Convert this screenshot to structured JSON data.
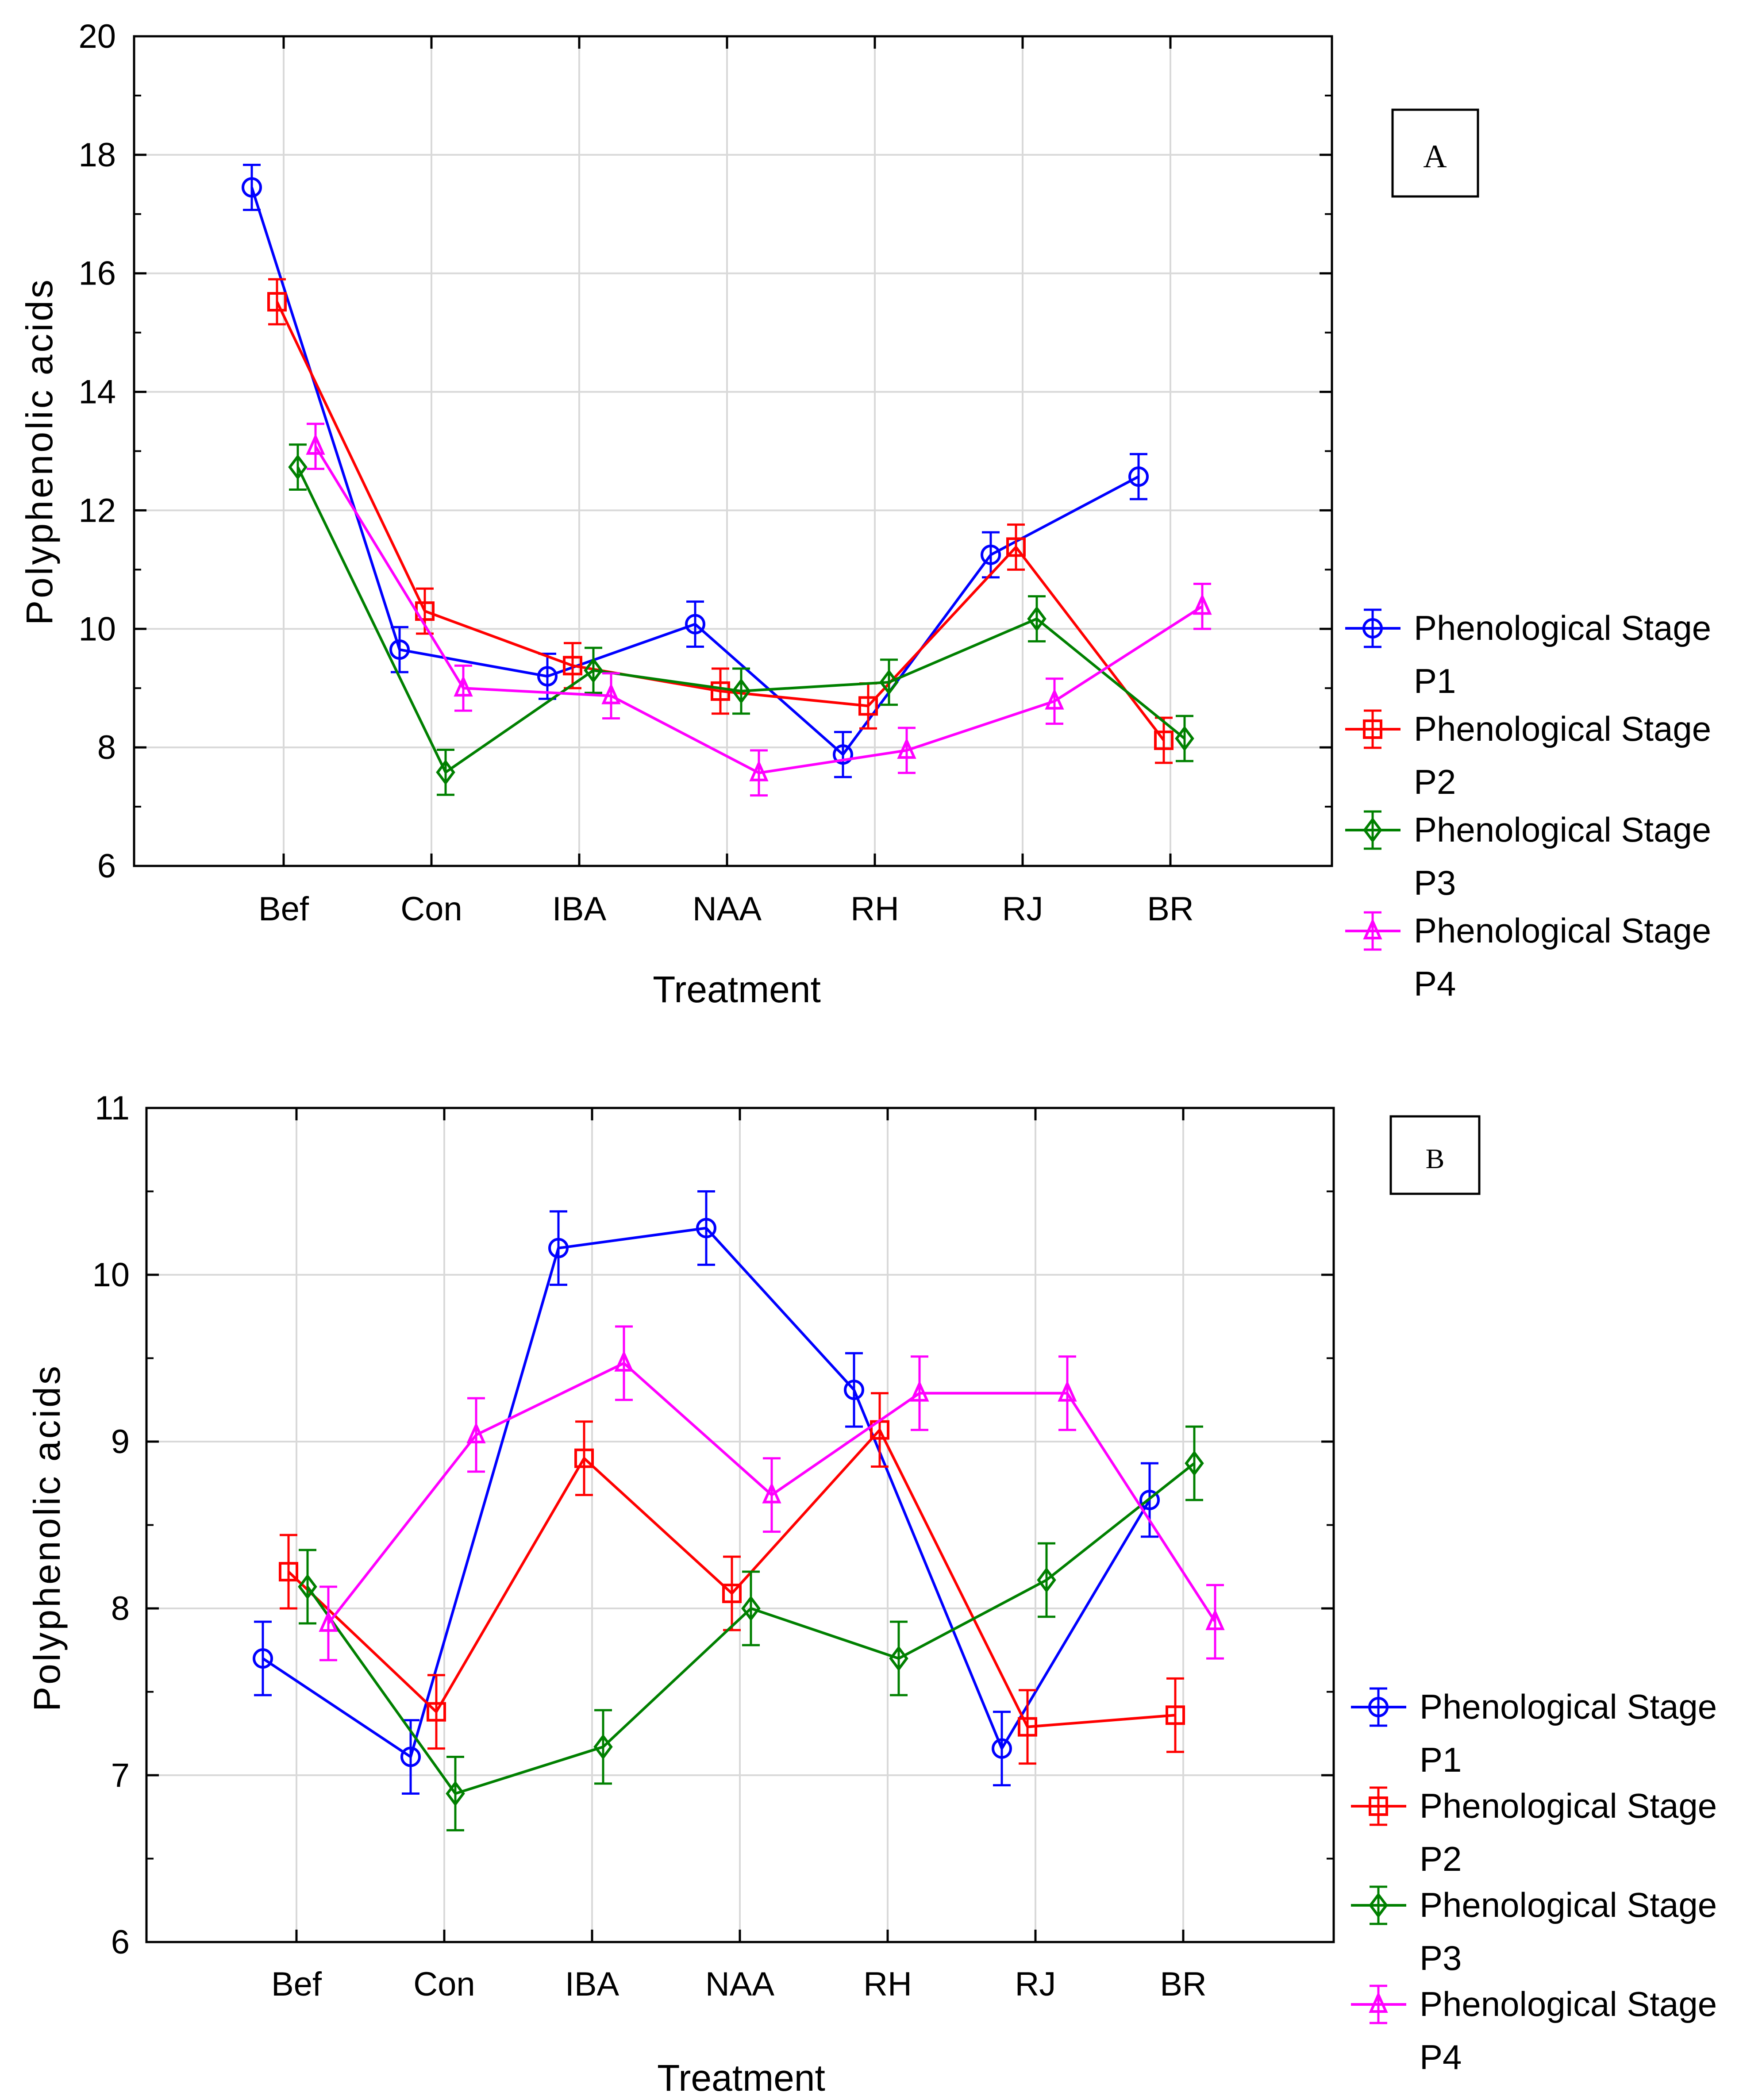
{
  "chart_data": [
    {
      "type": "line",
      "panel_label": "A",
      "xlabel": "Treatment",
      "ylabel": "Polyphenolic acids",
      "categories": [
        "Bef",
        "Con",
        "IBA",
        "NAA",
        "RH",
        "RJ",
        "BR"
      ],
      "ylim": [
        6,
        20
      ],
      "yticks": [
        6,
        8,
        10,
        12,
        14,
        16,
        18,
        20
      ],
      "grid": true,
      "legend_position": "right",
      "series": [
        {
          "name": "Phenological Stage P1",
          "line1": "Phenological Stage",
          "line2": "P1",
          "color": "#0000ff",
          "marker": "circle",
          "values": [
            17.45,
            9.65,
            9.2,
            10.08,
            7.88,
            11.25,
            12.57
          ],
          "errors": [
            0.38,
            0.38,
            0.38,
            0.38,
            0.38,
            0.38,
            0.38
          ]
        },
        {
          "name": "Phenological Stage P2",
          "line1": "Phenological Stage",
          "line2": "P2",
          "color": "#ff0000",
          "marker": "square",
          "values": [
            15.52,
            10.3,
            9.38,
            8.95,
            8.7,
            11.38,
            8.12
          ],
          "errors": [
            0.38,
            0.38,
            0.38,
            0.38,
            0.38,
            0.38,
            0.38
          ]
        },
        {
          "name": "Phenological Stage P3",
          "line1": "Phenological Stage",
          "line2": "P3",
          "color": "#008000",
          "marker": "diamond",
          "values": [
            12.73,
            7.58,
            9.3,
            8.95,
            9.1,
            10.17,
            8.15
          ],
          "errors": [
            0.38,
            0.38,
            0.38,
            0.38,
            0.38,
            0.38,
            0.38
          ]
        },
        {
          "name": "Phenological Stage P4",
          "line1": "Phenological Stage",
          "line2": "P4",
          "color": "#ff00ff",
          "marker": "triangle",
          "values": [
            13.08,
            9.0,
            8.87,
            7.57,
            7.95,
            8.78,
            10.38
          ],
          "errors": [
            0.38,
            0.38,
            0.38,
            0.38,
            0.38,
            0.38,
            0.38
          ]
        }
      ]
    },
    {
      "type": "line",
      "panel_label": "B",
      "xlabel": "Treatment",
      "ylabel": "Polyphenolic acids",
      "categories": [
        "Bef",
        "Con",
        "IBA",
        "NAA",
        "RH",
        "RJ",
        "BR"
      ],
      "ylim": [
        6,
        11
      ],
      "yticks": [
        6,
        7,
        8,
        9,
        10,
        11
      ],
      "grid": true,
      "legend_position": "bottom-right",
      "series": [
        {
          "name": "Phenological Stage P1",
          "line1": "Phenological Stage",
          "line2": "P1",
          "color": "#0000ff",
          "marker": "circle",
          "values": [
            7.7,
            7.11,
            10.16,
            10.28,
            9.31,
            7.16,
            8.65
          ],
          "errors": [
            0.22,
            0.22,
            0.22,
            0.22,
            0.22,
            0.22,
            0.22
          ]
        },
        {
          "name": "Phenological Stage P2",
          "line1": "Phenological Stage",
          "line2": "P2",
          "color": "#ff0000",
          "marker": "square",
          "values": [
            8.22,
            7.38,
            8.9,
            8.09,
            9.07,
            7.29,
            7.36
          ],
          "errors": [
            0.22,
            0.22,
            0.22,
            0.22,
            0.22,
            0.22,
            0.22
          ]
        },
        {
          "name": "Phenological Stage P3",
          "line1": "Phenological Stage",
          "line2": "P3",
          "color": "#008000",
          "marker": "diamond",
          "values": [
            8.13,
            6.89,
            7.17,
            8.0,
            7.7,
            8.17,
            8.87
          ],
          "errors": [
            0.22,
            0.22,
            0.22,
            0.22,
            0.22,
            0.22,
            0.22
          ]
        },
        {
          "name": "Phenological Stage P4",
          "line1": "Phenological Stage",
          "line2": "P4",
          "color": "#ff00ff",
          "marker": "triangle",
          "values": [
            7.91,
            9.04,
            9.47,
            8.68,
            9.29,
            9.29,
            7.92
          ],
          "errors": [
            0.22,
            0.22,
            0.22,
            0.22,
            0.22,
            0.22,
            0.22
          ]
        }
      ]
    }
  ]
}
